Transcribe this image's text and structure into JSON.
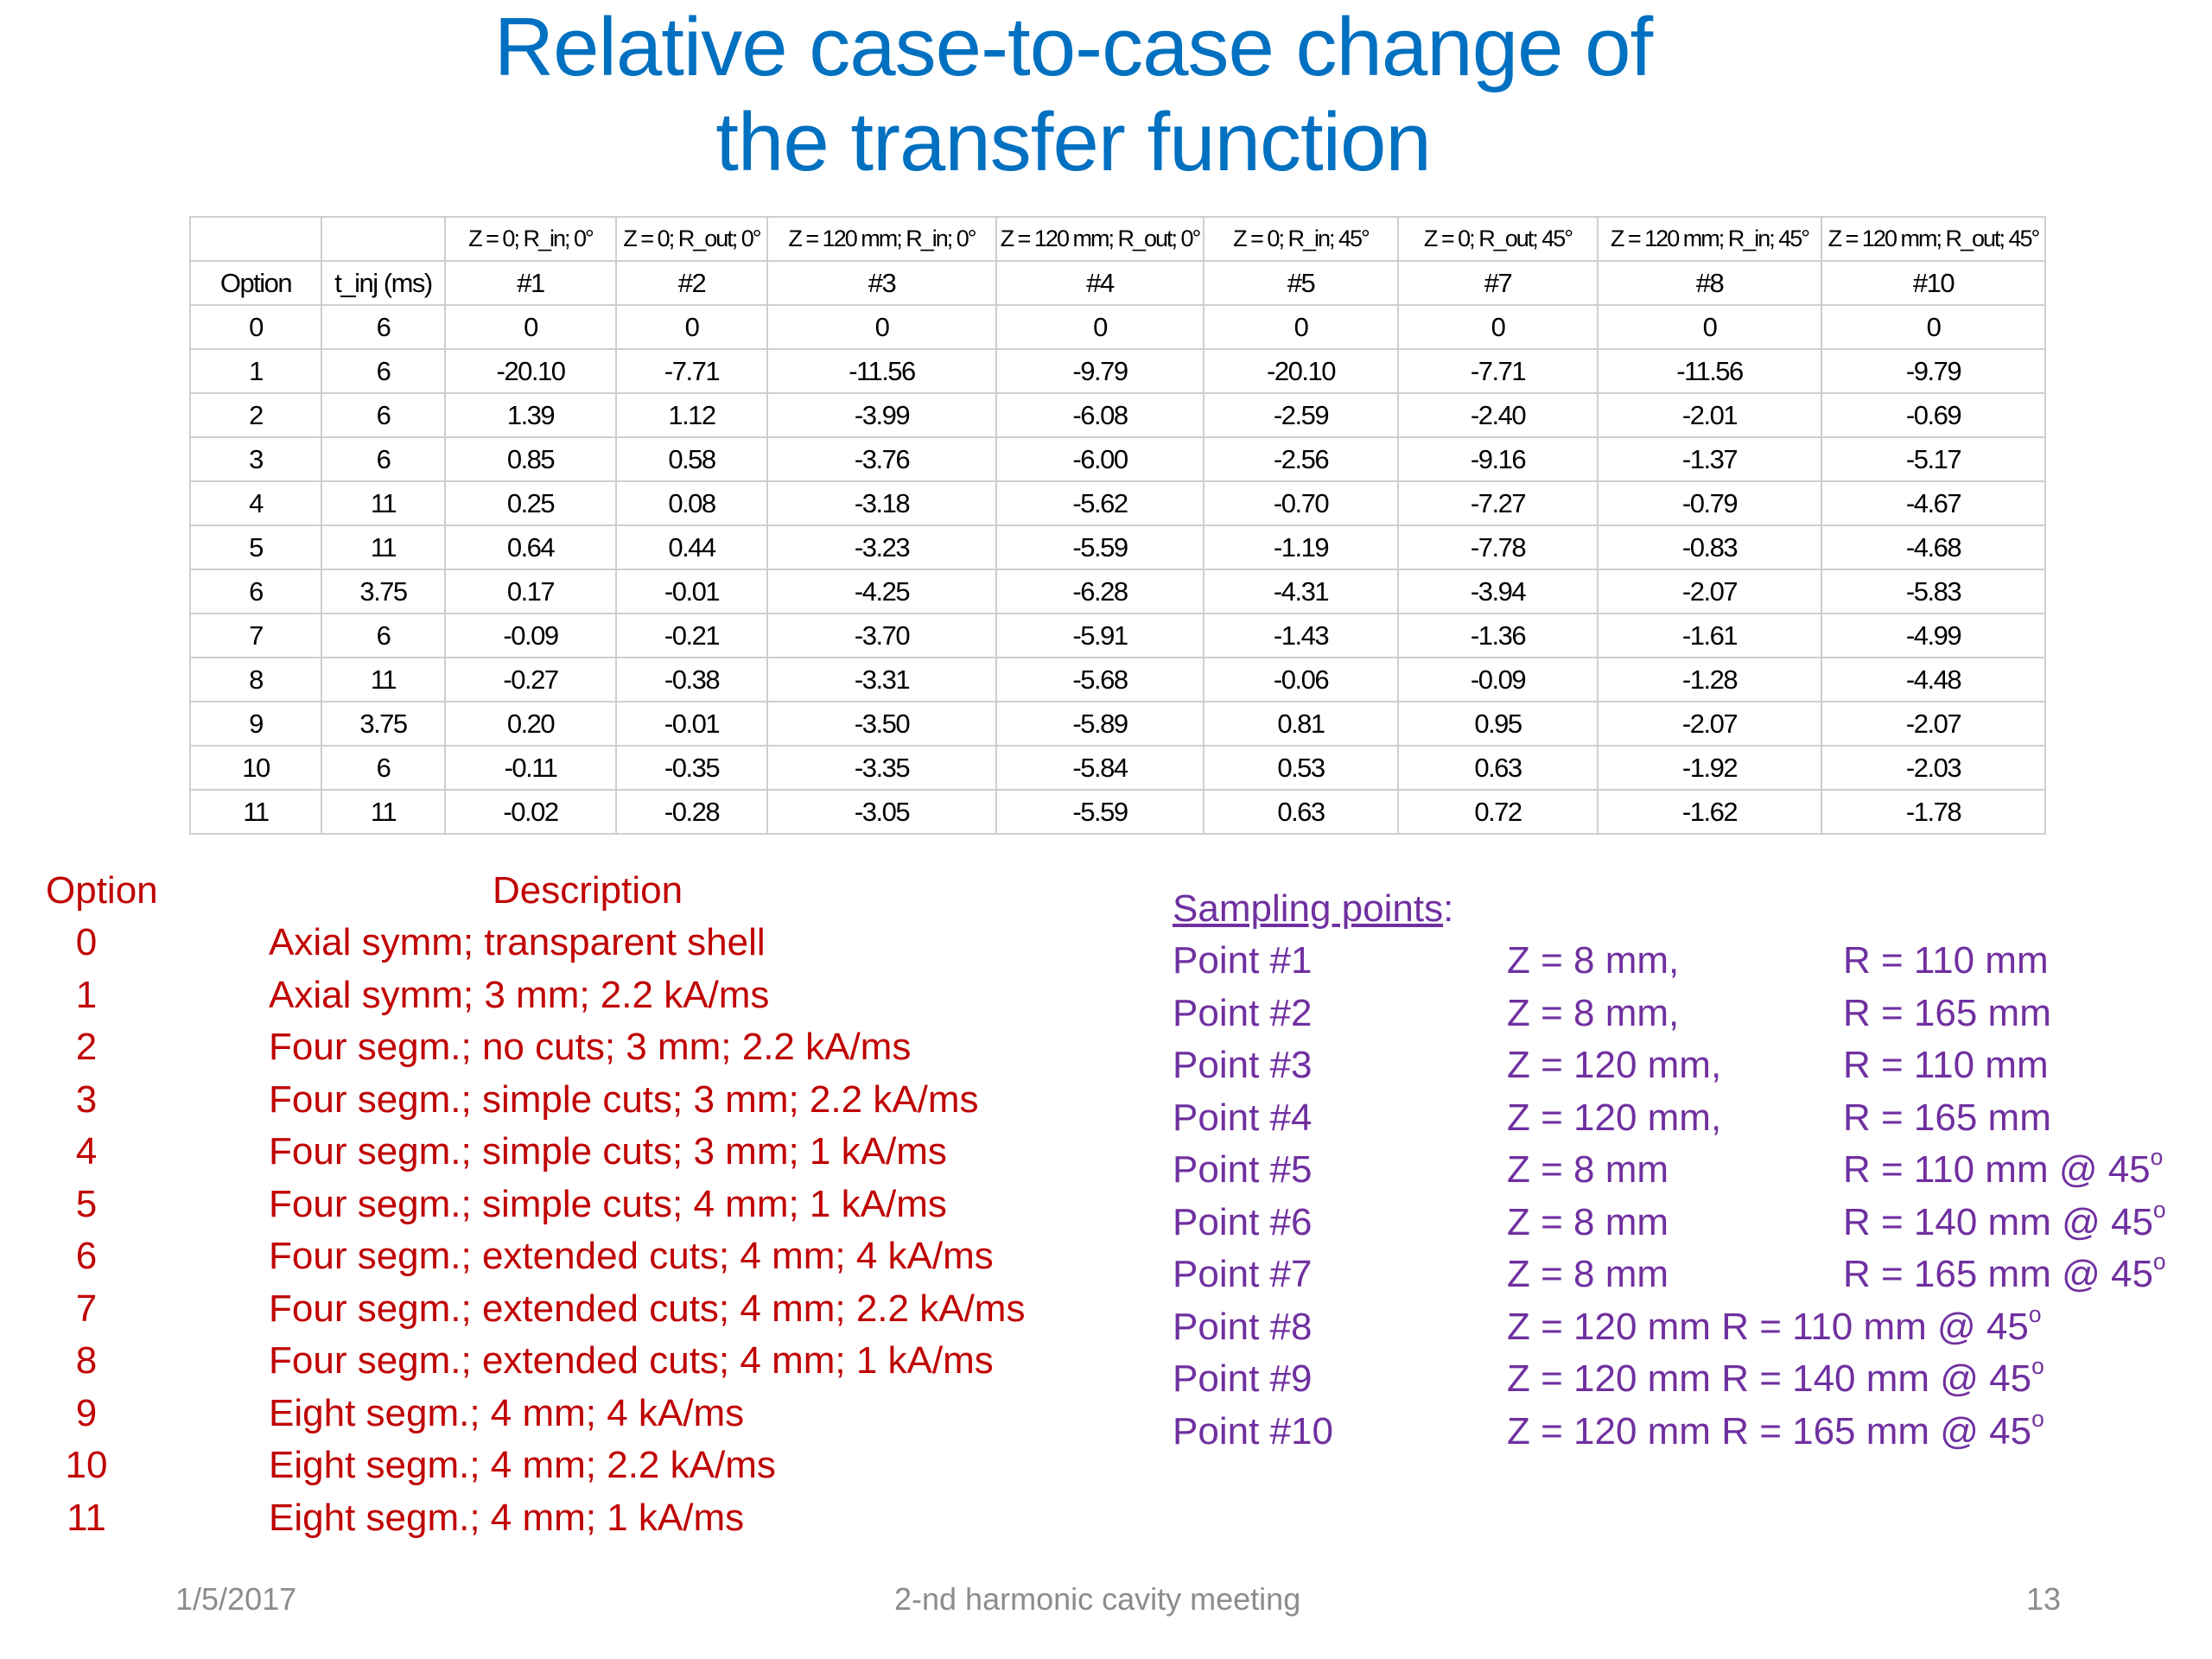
{
  "title": {
    "line1": "Relative case-to-case change of",
    "line2": "the transfer function"
  },
  "table": {
    "header_row1": [
      "",
      "",
      "Z = 0; R_in; 0°",
      "Z = 0; R_out; 0°",
      "Z = 120 mm; R_in; 0°",
      "Z = 120 mm; R_out; 0°",
      "Z = 0; R_in; 45°",
      "Z = 0; R_out; 45°",
      "Z = 120 mm; R_in; 45°",
      "Z = 120 mm; R_out; 45°"
    ],
    "header_row2": [
      "Option",
      "t_inj (ms)",
      "#1",
      "#2",
      "#3",
      "#4",
      "#5",
      "#7",
      "#8",
      "#10"
    ],
    "rows": [
      [
        "0",
        "6",
        "0",
        "0",
        "0",
        "0",
        "0",
        "0",
        "0",
        "0"
      ],
      [
        "1",
        "6",
        "-20.10",
        "-7.71",
        "-11.56",
        "-9.79",
        "-20.10",
        "-7.71",
        "-11.56",
        "-9.79"
      ],
      [
        "2",
        "6",
        "1.39",
        "1.12",
        "-3.99",
        "-6.08",
        "-2.59",
        "-2.40",
        "-2.01",
        "-0.69"
      ],
      [
        "3",
        "6",
        "0.85",
        "0.58",
        "-3.76",
        "-6.00",
        "-2.56",
        "-9.16",
        "-1.37",
        "-5.17"
      ],
      [
        "4",
        "11",
        "0.25",
        "0.08",
        "-3.18",
        "-5.62",
        "-0.70",
        "-7.27",
        "-0.79",
        "-4.67"
      ],
      [
        "5",
        "11",
        "0.64",
        "0.44",
        "-3.23",
        "-5.59",
        "-1.19",
        "-7.78",
        "-0.83",
        "-4.68"
      ],
      [
        "6",
        "3.75",
        "0.17",
        "-0.01",
        "-4.25",
        "-6.28",
        "-4.31",
        "-3.94",
        "-2.07",
        "-5.83"
      ],
      [
        "7",
        "6",
        "-0.09",
        "-0.21",
        "-3.70",
        "-5.91",
        "-1.43",
        "-1.36",
        "-1.61",
        "-4.99"
      ],
      [
        "8",
        "11",
        "-0.27",
        "-0.38",
        "-3.31",
        "-5.68",
        "-0.06",
        "-0.09",
        "-1.28",
        "-4.48"
      ],
      [
        "9",
        "3.75",
        "0.20",
        "-0.01",
        "-3.50",
        "-5.89",
        "0.81",
        "0.95",
        "-2.07",
        "-2.07"
      ],
      [
        "10",
        "6",
        "-0.11",
        "-0.35",
        "-3.35",
        "-5.84",
        "0.53",
        "0.63",
        "-1.92",
        "-2.03"
      ],
      [
        "11",
        "11",
        "-0.02",
        "-0.28",
        "-3.05",
        "-5.59",
        "0.63",
        "0.72",
        "-1.62",
        "-1.78"
      ]
    ]
  },
  "options": {
    "header_option": "Option",
    "header_description": "Description",
    "items": [
      {
        "num": "0",
        "desc": "Axial symm; transparent shell"
      },
      {
        "num": "1",
        "desc": "Axial symm; 3 mm; 2.2 kA/ms"
      },
      {
        "num": "2",
        "desc": "Four segm.; no cuts; 3 mm; 2.2 kA/ms"
      },
      {
        "num": "3",
        "desc": "Four segm.; simple cuts; 3 mm; 2.2 kA/ms"
      },
      {
        "num": "4",
        "desc": "Four segm.; simple cuts; 3 mm; 1 kA/ms"
      },
      {
        "num": "5",
        "desc": "Four segm.; simple cuts; 4 mm; 1 kA/ms"
      },
      {
        "num": "6",
        "desc": "Four segm.; extended cuts; 4 mm; 4 kA/ms"
      },
      {
        "num": "7",
        "desc": "Four segm.; extended cuts; 4 mm; 2.2 kA/ms"
      },
      {
        "num": "8",
        "desc": "Four segm.; extended cuts; 4 mm; 1 kA/ms"
      },
      {
        "num": "9",
        "desc": "Eight segm.; 4 mm; 4 kA/ms"
      },
      {
        "num": "10",
        "desc": "Eight segm.; 4 mm; 2.2 kA/ms"
      },
      {
        "num": "11",
        "desc": "Eight segm.; 4 mm; 1 kA/ms"
      }
    ]
  },
  "sampling": {
    "heading": "Sampling points",
    "colon": ":",
    "points": [
      {
        "point": "Point #1",
        "z": "Z = 8 mm,",
        "r": "R = 110 mm",
        "deg": ""
      },
      {
        "point": "Point #2",
        "z": "Z = 8 mm,",
        "r": "R = 165 mm",
        "deg": ""
      },
      {
        "point": "Point #3",
        "z": "Z = 120 mm,",
        "r": "R = 110 mm",
        "deg": ""
      },
      {
        "point": "Point #4",
        "z": "Z = 120 mm,",
        "r": "R = 165 mm",
        "deg": ""
      },
      {
        "point": "Point #5",
        "z": "Z = 8 mm",
        "r": "R = 110 mm @ 45",
        "deg": "o"
      },
      {
        "point": "Point #6",
        "z": "Z = 8 mm",
        "r": "R = 140 mm @ 45",
        "deg": "o"
      },
      {
        "point": "Point #7",
        "z": "Z = 8 mm",
        "r": "R = 165 mm @ 45",
        "deg": "o"
      },
      {
        "point": "Point #8",
        "z": "Z = 120 mm  R = 110 mm @ 45",
        "r": "",
        "deg": "o"
      },
      {
        "point": "Point #9",
        "z": "Z = 120 mm  R = 140 mm @ 45",
        "r": "",
        "deg": "o"
      },
      {
        "point": "Point #10",
        "z": "Z = 120 mm  R = 165 mm @ 45",
        "r": "",
        "deg": "o"
      }
    ]
  },
  "footer": {
    "date": "1/5/2017",
    "meeting": "2-nd harmonic cavity meeting",
    "page": "13"
  }
}
